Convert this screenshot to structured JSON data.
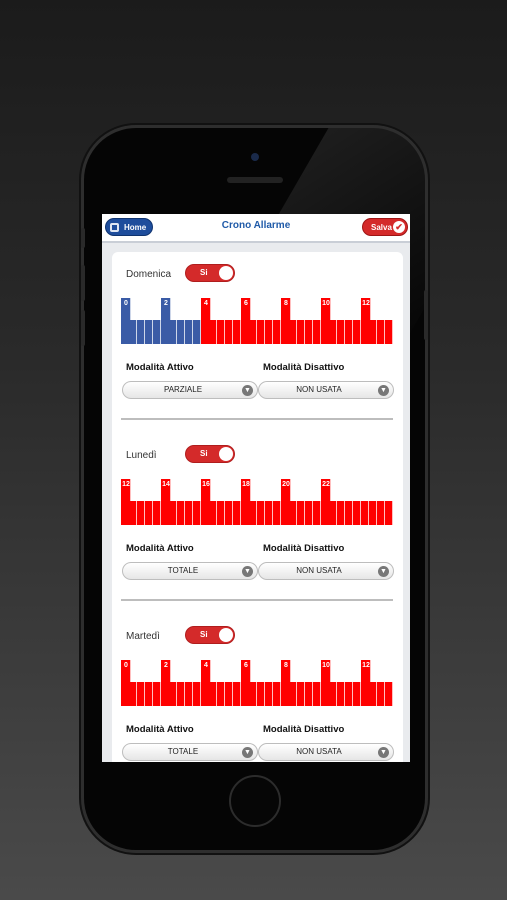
{
  "header": {
    "home_label": "Home",
    "title": "Crono Allarme",
    "save_label": "Salva"
  },
  "colors": {
    "active": "#ff0000",
    "inactive": "#3a5ba6",
    "brand": "#1e4d9c",
    "accent": "#d42a2a"
  },
  "days": [
    {
      "name": "Domenica",
      "toggle": "Si",
      "ticks": [
        "0",
        "2",
        "4",
        "6",
        "8",
        "10",
        "12"
      ],
      "active_from": 10,
      "active_to": 34,
      "mode_active_label": "Modalità Attivo",
      "mode_active_value": "PARZIALE",
      "mode_inactive_label": "Modalità Disattivo",
      "mode_inactive_value": "NON USATA"
    },
    {
      "name": "Lunedì",
      "toggle": "Si",
      "ticks": [
        "12",
        "14",
        "16",
        "18",
        "20",
        "22"
      ],
      "active_from": 0,
      "active_to": 48,
      "mode_active_label": "Modalità Attivo",
      "mode_active_value": "TOTALE",
      "mode_inactive_label": "Modalità Disattivo",
      "mode_inactive_value": "NON USATA"
    },
    {
      "name": "Martedì",
      "toggle": "Si",
      "ticks": [
        "0",
        "2",
        "4",
        "6",
        "8",
        "10",
        "12"
      ],
      "active_from": 0,
      "active_to": 48,
      "mode_active_label": "Modalità Attivo",
      "mode_active_value": "TOTALE",
      "mode_inactive_label": "Modalità Disattivo",
      "mode_inactive_value": "NON USATA"
    }
  ]
}
